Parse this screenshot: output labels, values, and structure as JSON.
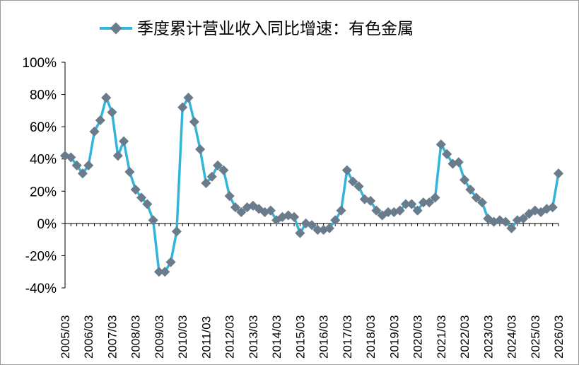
{
  "chart_data": {
    "type": "line",
    "title": "",
    "xlabel": "",
    "ylabel": "",
    "ylim": [
      -40,
      100
    ],
    "yticks": [
      "100%",
      "80%",
      "60%",
      "40%",
      "20%",
      "0%",
      "-20%",
      "-40%"
    ],
    "yticks_values": [
      100,
      80,
      60,
      40,
      20,
      0,
      -20,
      -40
    ],
    "x_tick_labels": [
      "2005/03",
      "2006/03",
      "2007/03",
      "2008/03",
      "2009/03",
      "2010/03",
      "2011/03",
      "2012/03",
      "2013/03",
      "2014/03",
      "2015/03",
      "2016/03",
      "2017/03",
      "2018/03",
      "2019/03",
      "2020/03",
      "2021/03",
      "2022/03",
      "2023/03",
      "2024/03",
      "2025/03",
      "2026/03"
    ],
    "grid": false,
    "legend_position": "top-center",
    "series": [
      {
        "name": "季度累计营业收入同比增速：有色金属",
        "color": "#33b5d9",
        "marker_color": "#6a7b8c",
        "values": [
          42,
          41,
          36,
          31,
          36,
          57,
          64,
          78,
          69,
          42,
          51,
          32,
          21,
          16,
          12,
          2,
          -30,
          -30,
          -24,
          -5,
          72,
          78,
          63,
          46,
          25,
          29,
          36,
          33,
          17,
          10,
          7,
          10,
          11,
          9,
          7,
          8,
          2,
          4,
          5,
          4,
          -6,
          0,
          -1,
          -4,
          -4,
          -3,
          2,
          8,
          33,
          26,
          23,
          15,
          14,
          8,
          5,
          7,
          7,
          8,
          12,
          12,
          8,
          13,
          13,
          16,
          49,
          43,
          37,
          38,
          27,
          21,
          16,
          13,
          3,
          1,
          2,
          1,
          -3,
          2,
          3,
          6,
          8,
          7,
          9,
          10,
          31
        ]
      }
    ]
  }
}
